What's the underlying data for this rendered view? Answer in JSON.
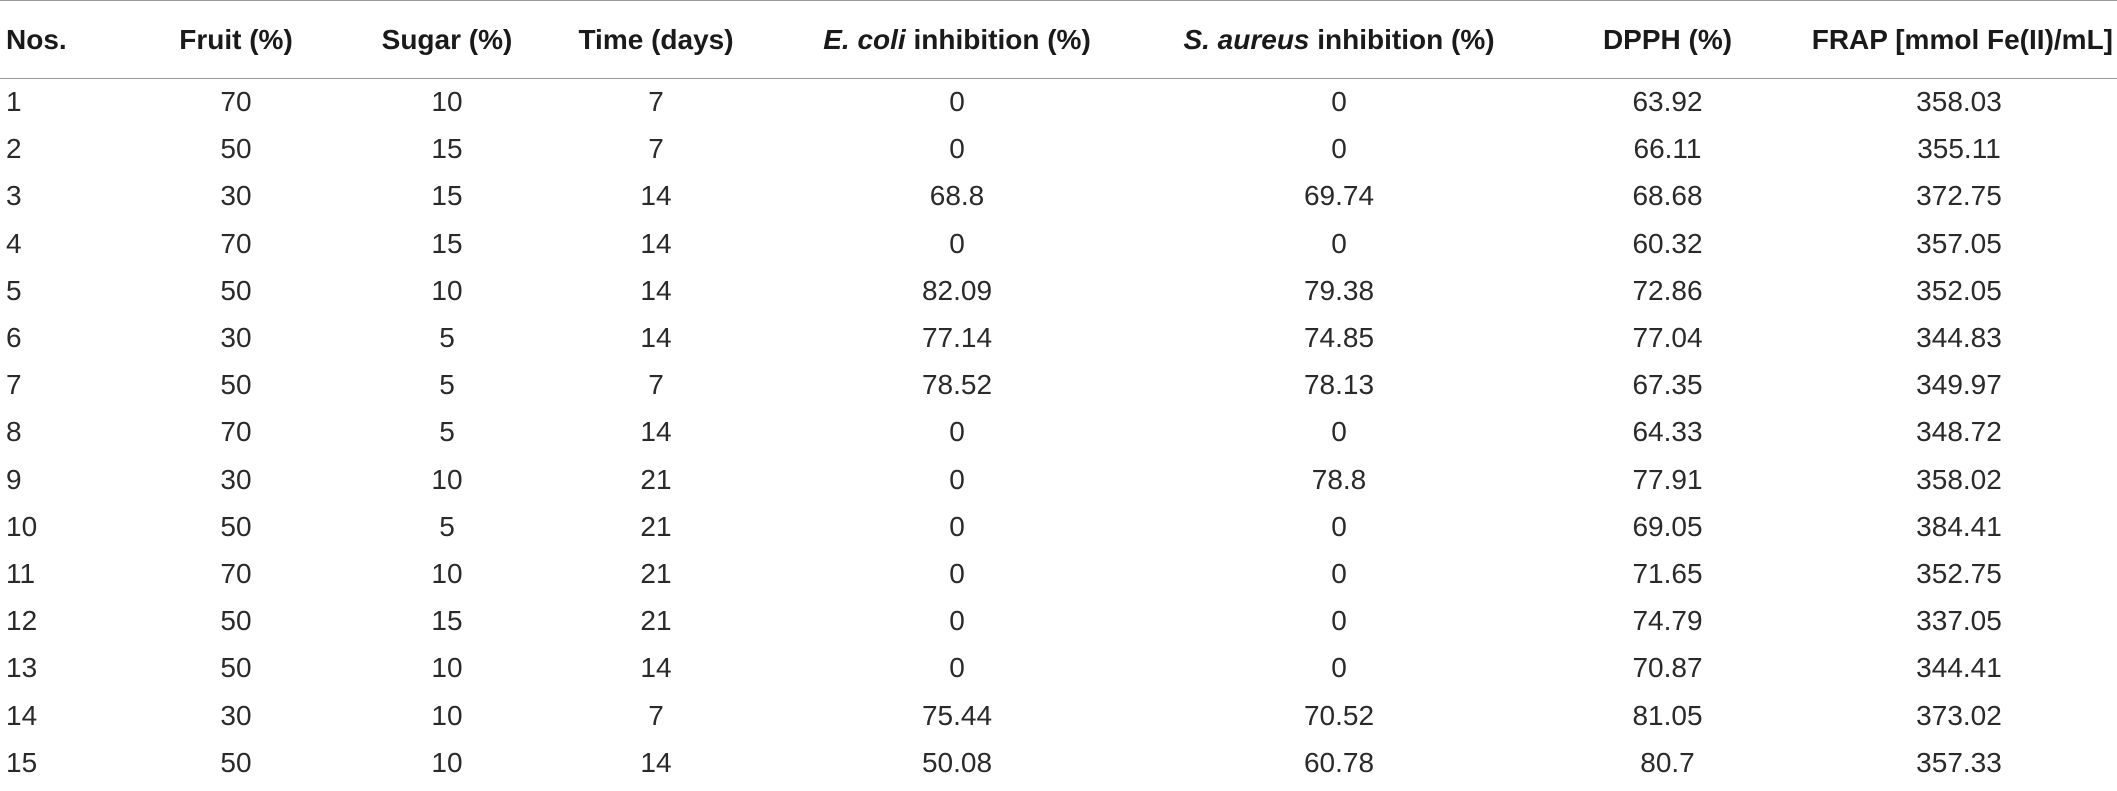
{
  "table": {
    "headers": [
      {
        "pre": "",
        "em": "",
        "text": "Nos."
      },
      {
        "pre": "",
        "em": "",
        "text": "Fruit (%)"
      },
      {
        "pre": "",
        "em": "",
        "text": "Sugar (%)"
      },
      {
        "pre": "",
        "em": "",
        "text": "Time (days)"
      },
      {
        "pre": "",
        "em": "E. coli",
        "text": " inhibition (%)"
      },
      {
        "pre": "",
        "em": "S. aureus",
        "text": " inhibition (%)"
      },
      {
        "pre": "",
        "em": "",
        "text": "DPPH (%)"
      },
      {
        "pre": "",
        "em": "",
        "text": "FRAP [mmol Fe(II)/mL]"
      }
    ],
    "rows": [
      [
        "1",
        "70",
        "10",
        "7",
        "0",
        "0",
        "63.92",
        "358.03"
      ],
      [
        "2",
        "50",
        "15",
        "7",
        "0",
        "0",
        "66.11",
        "355.11"
      ],
      [
        "3",
        "30",
        "15",
        "14",
        "68.8",
        "69.74",
        "68.68",
        "372.75"
      ],
      [
        "4",
        "70",
        "15",
        "14",
        "0",
        "0",
        "60.32",
        "357.05"
      ],
      [
        "5",
        "50",
        "10",
        "14",
        "82.09",
        "79.38",
        "72.86",
        "352.05"
      ],
      [
        "6",
        "30",
        "5",
        "14",
        "77.14",
        "74.85",
        "77.04",
        "344.83"
      ],
      [
        "7",
        "50",
        "5",
        "7",
        "78.52",
        "78.13",
        "67.35",
        "349.97"
      ],
      [
        "8",
        "70",
        "5",
        "14",
        "0",
        "0",
        "64.33",
        "348.72"
      ],
      [
        "9",
        "30",
        "10",
        "21",
        "0",
        "78.8",
        "77.91",
        "358.02"
      ],
      [
        "10",
        "50",
        "5",
        "21",
        "0",
        "0",
        "69.05",
        "384.41"
      ],
      [
        "11",
        "70",
        "10",
        "21",
        "0",
        "0",
        "71.65",
        "352.75"
      ],
      [
        "12",
        "50",
        "15",
        "21",
        "0",
        "0",
        "74.79",
        "337.05"
      ],
      [
        "13",
        "50",
        "10",
        "14",
        "0",
        "0",
        "70.87",
        "344.41"
      ],
      [
        "14",
        "30",
        "10",
        "7",
        "75.44",
        "70.52",
        "81.05",
        "373.02"
      ],
      [
        "15",
        "50",
        "10",
        "14",
        "50.08",
        "60.78",
        "80.7",
        "357.33"
      ]
    ]
  }
}
